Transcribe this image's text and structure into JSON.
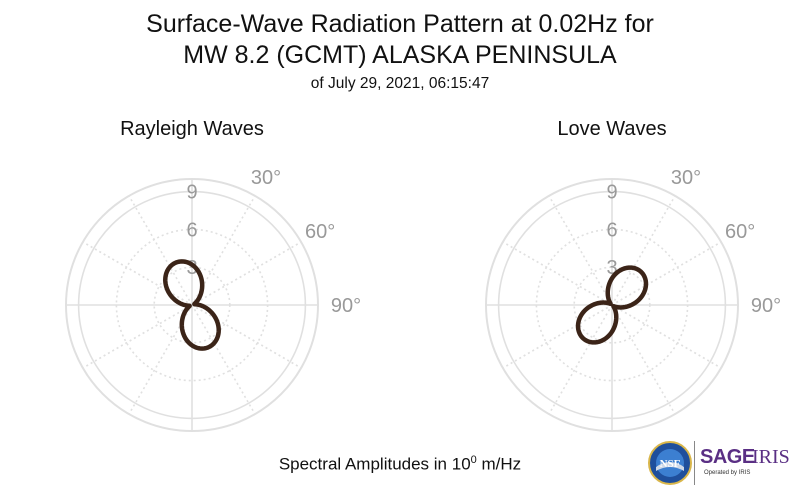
{
  "titles": {
    "line1": "Surface-Wave Radiation Pattern at 0.02Hz for",
    "line2": "MW 8.2 (GCMT) ALASKA PENINSULA",
    "line3": "of July 29, 2021, 06:15:47"
  },
  "xlabel_prefix": "Spectral Amplitudes in 10",
  "xlabel_exp": "0",
  "xlabel_suffix": " m/Hz",
  "logos": {
    "nsf": "NSF",
    "sage": "SAGE",
    "iris": "IRIS",
    "operated": "Operated by IRIS"
  },
  "colors": {
    "pattern": "#3b2418",
    "grid": "#e0e0e0",
    "axis_text": "#999999"
  },
  "chart_data": [
    {
      "type": "polar",
      "title": "Rayleigh Waves",
      "r_ticks": [
        3,
        6,
        9
      ],
      "r_max": 10,
      "angle_ticks": [
        "30°",
        "60°",
        "90°"
      ],
      "zero_direction": "north",
      "angle_direction": "clockwise",
      "angle_grid_step_deg": 30,
      "pattern": {
        "form": "two-lobe",
        "amplitude": 3.4,
        "baseline": 0.2,
        "lobe_axis_deg": 160
      }
    },
    {
      "type": "polar",
      "title": "Love Waves",
      "r_ticks": [
        3,
        6,
        9
      ],
      "r_max": 10,
      "angle_ticks": [
        "30°",
        "60°",
        "90°"
      ],
      "zero_direction": "north",
      "angle_direction": "clockwise",
      "angle_grid_step_deg": 30,
      "pattern": {
        "form": "two-lobe",
        "amplitude": 3.35,
        "baseline": 0.15,
        "lobe_axis_deg": 40
      }
    }
  ]
}
